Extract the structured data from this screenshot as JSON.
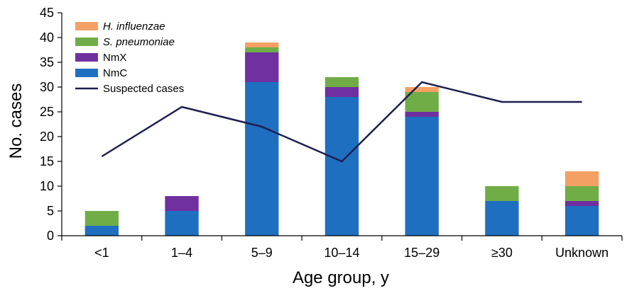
{
  "chart_data": {
    "type": "bar",
    "stacked": true,
    "categories": [
      "<1",
      "1–4",
      "5–9",
      "10–14",
      "15–29",
      "≥30",
      "Unknown"
    ],
    "series": [
      {
        "name": "NmC",
        "color": "#1f6fc0",
        "values": [
          2,
          5,
          31,
          28,
          24,
          7,
          6
        ]
      },
      {
        "name": "NmX",
        "color": "#7030a0",
        "values": [
          0,
          3,
          6,
          2,
          1,
          0,
          1
        ]
      },
      {
        "name": "S. pneumoniae",
        "color": "#70ad47",
        "values": [
          3,
          0,
          1,
          2,
          4,
          3,
          3
        ]
      },
      {
        "name": "H. influenzae",
        "color": "#f4a065",
        "values": [
          0,
          0,
          1,
          0,
          1,
          0,
          3
        ]
      }
    ],
    "line_series": {
      "name": "Suspected cases",
      "color": "#1c1f4f",
      "values": [
        16,
        26,
        22,
        15,
        31,
        27,
        27
      ]
    },
    "legend_order": [
      "H. influenzae",
      "S. pneumoniae",
      "NmX",
      "NmC",
      "Suspected cases"
    ],
    "italic_legend": [
      "H. influenzae",
      "S. pneumoniae"
    ],
    "xlabel": "Age group, y",
    "ylabel": "No. cases",
    "ylim": [
      0,
      45
    ],
    "yticks": [
      0,
      5,
      10,
      15,
      20,
      25,
      30,
      35,
      40,
      45
    ],
    "grid": false,
    "legend_position": "top-left"
  }
}
